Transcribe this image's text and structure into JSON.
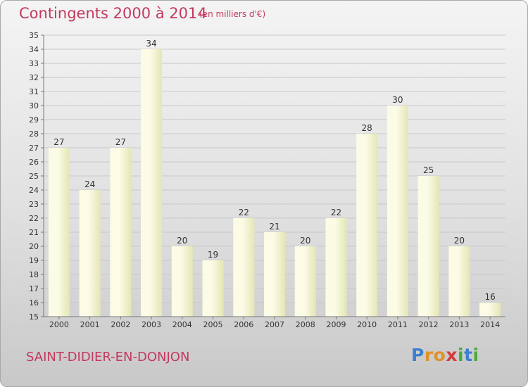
{
  "header": {
    "title": "Contingents 2000 à 2014",
    "subtitle": "(en milliers d'€)"
  },
  "footer": {
    "commune": "SAINT-DIDIER-EN-DONJON",
    "logo_letters": [
      {
        "ch": "P",
        "color": "#3d7fd0"
      },
      {
        "ch": "r",
        "color": "#e0922a"
      },
      {
        "ch": "o",
        "color": "#e0922a"
      },
      {
        "ch": "x",
        "color": "#d43a3a"
      },
      {
        "ch": "i",
        "color": "#4aab3c"
      },
      {
        "ch": "t",
        "color": "#3d7fd0"
      },
      {
        "ch": "i",
        "color": "#4aab3c"
      }
    ]
  },
  "chart_data": {
    "type": "bar",
    "categories": [
      "2000",
      "2001",
      "2002",
      "2003",
      "2004",
      "2005",
      "2006",
      "2007",
      "2008",
      "2009",
      "2010",
      "2011",
      "2012",
      "2013",
      "2014"
    ],
    "values": [
      27,
      24,
      27,
      34,
      20,
      19,
      22,
      21,
      20,
      22,
      28,
      30,
      25,
      20,
      16
    ],
    "title": "Contingents 2000 à 2014",
    "xlabel": "",
    "ylabel": "",
    "ylim": [
      15,
      35
    ],
    "yticks": [
      15,
      16,
      17,
      18,
      19,
      20,
      21,
      22,
      23,
      24,
      25,
      26,
      27,
      28,
      29,
      30,
      31,
      32,
      33,
      34,
      35
    ],
    "grid": true,
    "colors": {
      "bar_light": "#fbfbe6",
      "bar_dark": "#e4e6b4",
      "grid": "#c8c8c8",
      "axis": "#777777",
      "title": "#c33a5e"
    }
  }
}
